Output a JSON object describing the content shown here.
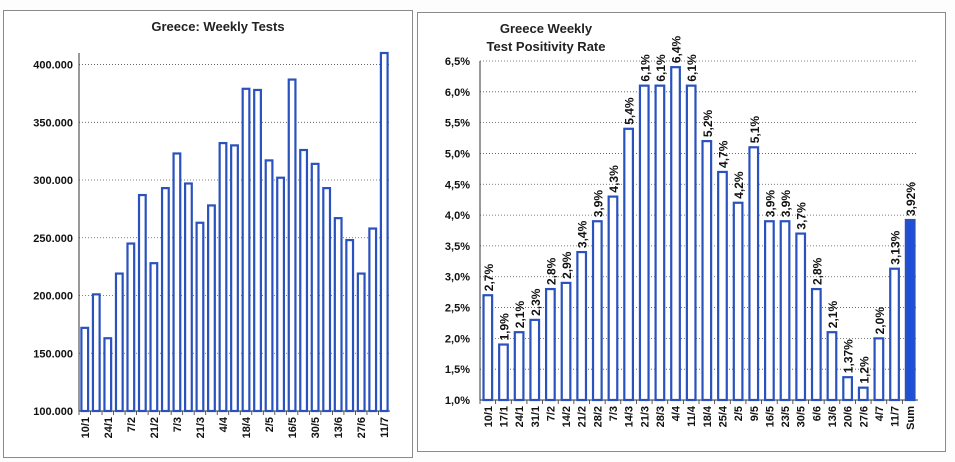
{
  "chart_data": [
    {
      "type": "bar",
      "title": "Greece: Weekly Tests",
      "xlabel": "",
      "ylabel": "",
      "ylim": [
        100000,
        410000
      ],
      "yticks": [
        "100.000",
        "150.000",
        "200.000",
        "250.000",
        "300.000",
        "350.000",
        "400.000"
      ],
      "categories": [
        "10/1",
        "",
        "24/1",
        "",
        "7/2",
        "",
        "21/2",
        "",
        "7/3",
        "",
        "21/3",
        "",
        "4/4",
        "",
        "18/4",
        "",
        "2/5",
        "",
        "16/5",
        "",
        "30/5",
        "",
        "13/6",
        "",
        "27/6",
        "",
        "11/7"
      ],
      "values": [
        172000,
        201000,
        163000,
        219000,
        245000,
        287000,
        228000,
        293000,
        323000,
        297000,
        263000,
        278000,
        332000,
        330000,
        379000,
        378000,
        317000,
        302000,
        387000,
        326000,
        314000,
        293000,
        267000,
        248000,
        219000,
        258000,
        410000
      ],
      "bar_color": "#2a52be",
      "grid": true,
      "legend": "none"
    },
    {
      "type": "bar",
      "title": "Greece  Weekly\nTest  Positivity  Rate",
      "title_lines": [
        "Greece  Weekly",
        "Test  Positivity  Rate"
      ],
      "xlabel": "",
      "ylabel": "",
      "ylim": [
        1.0,
        6.5
      ],
      "yticks": [
        "1,0%",
        "1,5%",
        "2,0%",
        "2,5%",
        "3,0%",
        "3,5%",
        "4,0%",
        "4,5%",
        "5,0%",
        "5,5%",
        "6,0%",
        "6,5%"
      ],
      "categories": [
        "10/1",
        "17/1",
        "24/1",
        "31/1",
        "7/2",
        "14/2",
        "21/2",
        "28/2",
        "7/3",
        "14/3",
        "21/3",
        "28/3",
        "4/4",
        "11/4",
        "18/4",
        "25/4",
        "2/5",
        "9/5",
        "16/5",
        "23/5",
        "30/5",
        "6/6",
        "13/6",
        "20/6",
        "27/6",
        "4/7",
        "11/7",
        "Sum"
      ],
      "values": [
        2.7,
        1.9,
        2.1,
        2.3,
        2.8,
        2.9,
        3.4,
        3.9,
        4.3,
        5.4,
        6.1,
        6.1,
        6.4,
        6.1,
        5.2,
        4.7,
        4.2,
        5.1,
        3.9,
        3.9,
        3.7,
        2.8,
        2.1,
        1.37,
        1.2,
        2.0,
        3.13,
        3.92
      ],
      "data_labels": [
        "2,7%",
        "1,9%",
        "2,1%",
        "2,3%",
        "2,8%",
        "2,9%",
        "3,4%",
        "3,9%",
        "4,3%",
        "5,4%",
        "6,1%",
        "6,1%",
        "6,4%",
        "6,1%",
        "5,2%",
        "4,7%",
        "4,2%",
        "5,1%",
        "3,9%",
        "3,9%",
        "3,7%",
        "2,8%",
        "2,1%",
        "1,37%",
        "1,2%",
        "2,0%",
        "3,13%",
        "3,92%"
      ],
      "bar_color": "#2a52be",
      "sum_bar_color": "#1d4fd8",
      "sum_label_color": "#e0201a",
      "grid": true,
      "legend": "none"
    }
  ]
}
